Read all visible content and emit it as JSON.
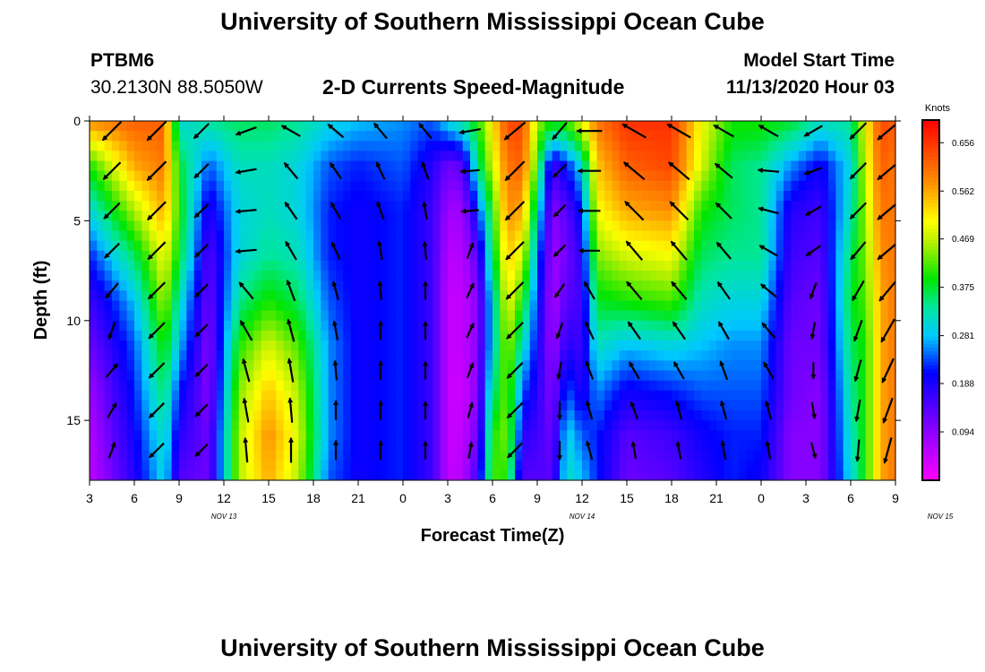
{
  "page": {
    "title_top": "University of Southern Mississippi Ocean Cube",
    "title_bottom": "University of Southern Mississippi Ocean Cube",
    "station_name": "PTBM6",
    "station_coords": "30.2130N 88.5050W",
    "model_start_label": "Model Start Time",
    "model_start_time": "11/13/2020 Hour 03"
  },
  "chart_data": {
    "type": "heatmap",
    "title": "2-D Currents Speed-Magnitude",
    "xlabel": "Forecast Time(Z)",
    "ylabel": "Depth (ft)",
    "x_tick_labels": [
      "3",
      "6",
      "9",
      "12",
      "15",
      "18",
      "21",
      "0",
      "3",
      "6",
      "9",
      "12",
      "15",
      "18",
      "21",
      "0",
      "3",
      "6",
      "9"
    ],
    "x_hours_from_start": [
      0,
      3,
      6,
      9,
      12,
      15,
      18,
      21,
      24,
      27,
      30,
      33,
      36,
      39,
      42,
      45,
      48,
      51,
      54
    ],
    "x_range_hours": [
      0,
      54
    ],
    "date_labels": [
      {
        "text": "NOV 13",
        "hour": 9
      },
      {
        "text": "NOV 14",
        "hour": 33
      },
      {
        "text": "NOV 15",
        "hour": 57
      }
    ],
    "y_ticks": [
      0,
      5,
      10,
      15
    ],
    "y_tick_labels": [
      "0",
      "5",
      "10",
      "15"
    ],
    "y_range": [
      0,
      18
    ],
    "colorbar": {
      "label": "Knots",
      "min": 0.0,
      "max": 0.7,
      "tick_values": [
        0.656,
        0.562,
        0.469,
        0.375,
        0.281,
        0.188,
        0.094
      ],
      "tick_labels": [
        "0.656",
        "0.562",
        "0.469",
        "0.375",
        "0.281",
        "0.188",
        "0.094"
      ]
    },
    "speed_profile_by_hour": [
      {
        "h": 0,
        "s": [
          0.58,
          0.4,
          0.3,
          0.22,
          0.16,
          0.12,
          0.08,
          0.06,
          0.05
        ]
      },
      {
        "h": 3,
        "s": [
          0.62,
          0.56,
          0.46,
          0.36,
          0.28,
          0.24,
          0.22,
          0.2,
          0.18
        ]
      },
      {
        "h": 5,
        "s": [
          0.62,
          0.6,
          0.56,
          0.5,
          0.46,
          0.4,
          0.36,
          0.32,
          0.3
        ]
      },
      {
        "h": 6,
        "s": [
          0.3,
          0.38,
          0.4,
          0.38,
          0.32,
          0.28,
          0.22,
          0.18,
          0.14
        ]
      },
      {
        "h": 8,
        "s": [
          0.34,
          0.24,
          0.18,
          0.14,
          0.12,
          0.1,
          0.1,
          0.12,
          0.12
        ]
      },
      {
        "h": 10,
        "s": [
          0.36,
          0.32,
          0.3,
          0.3,
          0.34,
          0.4,
          0.44,
          0.46,
          0.46
        ]
      },
      {
        "h": 12,
        "s": [
          0.36,
          0.32,
          0.32,
          0.34,
          0.4,
          0.48,
          0.54,
          0.58,
          0.56
        ]
      },
      {
        "h": 14,
        "s": [
          0.34,
          0.3,
          0.3,
          0.32,
          0.36,
          0.42,
          0.46,
          0.48,
          0.46
        ]
      },
      {
        "h": 16,
        "s": [
          0.3,
          0.24,
          0.22,
          0.22,
          0.24,
          0.26,
          0.26,
          0.26,
          0.24
        ]
      },
      {
        "h": 18,
        "s": [
          0.28,
          0.22,
          0.2,
          0.2,
          0.2,
          0.2,
          0.2,
          0.2,
          0.2
        ]
      },
      {
        "h": 21,
        "s": [
          0.26,
          0.24,
          0.22,
          0.22,
          0.22,
          0.22,
          0.22,
          0.22,
          0.22
        ]
      },
      {
        "h": 23,
        "s": [
          0.24,
          0.18,
          0.16,
          0.16,
          0.16,
          0.16,
          0.16,
          0.16,
          0.16
        ]
      },
      {
        "h": 24,
        "s": [
          0.3,
          0.12,
          0.08,
          0.06,
          0.05,
          0.05,
          0.05,
          0.05,
          0.05
        ]
      },
      {
        "h": 25,
        "s": [
          0.34,
          0.14,
          0.08,
          0.06,
          0.05,
          0.05,
          0.04,
          0.05,
          0.06
        ]
      },
      {
        "h": 26,
        "s": [
          0.4,
          0.34,
          0.22,
          0.14,
          0.1,
          0.1,
          0.1,
          0.12,
          0.16
        ]
      },
      {
        "h": 27,
        "s": [
          0.52,
          0.48,
          0.4,
          0.36,
          0.3,
          0.3,
          0.34,
          0.4,
          0.42
        ]
      },
      {
        "h": 28,
        "s": [
          0.64,
          0.6,
          0.58,
          0.54,
          0.5,
          0.46,
          0.44,
          0.44,
          0.4
        ]
      },
      {
        "h": 29,
        "s": [
          0.64,
          0.62,
          0.56,
          0.48,
          0.4,
          0.32,
          0.24,
          0.18,
          0.14
        ]
      },
      {
        "h": 30,
        "s": [
          0.46,
          0.4,
          0.32,
          0.26,
          0.22,
          0.2,
          0.18,
          0.16,
          0.14
        ]
      },
      {
        "h": 31,
        "s": [
          0.4,
          0.16,
          0.1,
          0.08,
          0.07,
          0.08,
          0.1,
          0.12,
          0.14
        ]
      },
      {
        "h": 32,
        "s": [
          0.42,
          0.22,
          0.14,
          0.12,
          0.14,
          0.18,
          0.24,
          0.3,
          0.32
        ]
      },
      {
        "h": 33,
        "s": [
          0.5,
          0.3,
          0.22,
          0.18,
          0.16,
          0.16,
          0.18,
          0.24,
          0.28
        ]
      },
      {
        "h": 34,
        "s": [
          0.6,
          0.54,
          0.5,
          0.44,
          0.38,
          0.32,
          0.26,
          0.22,
          0.22
        ]
      },
      {
        "h": 36,
        "s": [
          0.66,
          0.62,
          0.56,
          0.48,
          0.4,
          0.28,
          0.2,
          0.14,
          0.12
        ]
      },
      {
        "h": 39,
        "s": [
          0.66,
          0.64,
          0.58,
          0.5,
          0.42,
          0.3,
          0.22,
          0.16,
          0.14
        ]
      },
      {
        "h": 41,
        "s": [
          0.5,
          0.48,
          0.4,
          0.36,
          0.32,
          0.28,
          0.24,
          0.2,
          0.18
        ]
      },
      {
        "h": 43,
        "s": [
          0.4,
          0.36,
          0.36,
          0.34,
          0.3,
          0.26,
          0.24,
          0.22,
          0.22
        ]
      },
      {
        "h": 45,
        "s": [
          0.4,
          0.34,
          0.34,
          0.34,
          0.3,
          0.26,
          0.24,
          0.22,
          0.2
        ]
      },
      {
        "h": 47,
        "s": [
          0.38,
          0.26,
          0.18,
          0.16,
          0.14,
          0.12,
          0.12,
          0.1,
          0.1
        ]
      },
      {
        "h": 49,
        "s": [
          0.32,
          0.2,
          0.16,
          0.14,
          0.12,
          0.12,
          0.1,
          0.1,
          0.1
        ]
      },
      {
        "h": 51,
        "s": [
          0.34,
          0.3,
          0.32,
          0.36,
          0.38,
          0.36,
          0.34,
          0.32,
          0.3
        ]
      },
      {
        "h": 52,
        "s": [
          0.5,
          0.48,
          0.46,
          0.44,
          0.42,
          0.4,
          0.4,
          0.4,
          0.4
        ]
      },
      {
        "h": 53,
        "s": [
          0.64,
          0.62,
          0.6,
          0.58,
          0.56,
          0.56,
          0.56,
          0.56,
          0.56
        ]
      },
      {
        "h": 54,
        "s": [
          0.62,
          0.6,
          0.6,
          0.6,
          0.6,
          0.6,
          0.6,
          0.6,
          0.6
        ]
      }
    ],
    "vector_direction_deg": [
      {
        "h": 1.5,
        "d": [
          225,
          225,
          225,
          225,
          220,
          200,
          40,
          30,
          20
        ]
      },
      {
        "h": 4.5,
        "d": [
          225,
          225,
          225,
          225,
          225,
          225,
          225,
          225,
          225
        ]
      },
      {
        "h": 7.5,
        "d": [
          225,
          225,
          225,
          225,
          225,
          225,
          225,
          225,
          225
        ]
      },
      {
        "h": 10.5,
        "d": [
          250,
          260,
          265,
          265,
          320,
          330,
          345,
          350,
          355
        ]
      },
      {
        "h": 13.5,
        "d": [
          300,
          320,
          325,
          330,
          340,
          345,
          350,
          355,
          0
        ]
      },
      {
        "h": 16.5,
        "d": [
          310,
          325,
          330,
          335,
          345,
          350,
          355,
          0,
          0
        ]
      },
      {
        "h": 19.5,
        "d": [
          320,
          335,
          340,
          350,
          355,
          0,
          0,
          0,
          0
        ]
      },
      {
        "h": 22.5,
        "d": [
          320,
          340,
          350,
          355,
          0,
          0,
          0,
          0,
          0
        ]
      },
      {
        "h": 25.5,
        "d": [
          260,
          265,
          265,
          20,
          25,
          25,
          20,
          15,
          10
        ]
      },
      {
        "h": 28.5,
        "d": [
          230,
          225,
          225,
          225,
          225,
          225,
          225,
          225,
          225
        ]
      },
      {
        "h": 31.5,
        "d": [
          220,
          225,
          225,
          225,
          215,
          200,
          190,
          180,
          180
        ]
      },
      {
        "h": 33.5,
        "d": [
          270,
          270,
          270,
          270,
          330,
          335,
          340,
          345,
          345
        ]
      },
      {
        "h": 36.5,
        "d": [
          300,
          310,
          315,
          320,
          320,
          325,
          330,
          340,
          350
        ]
      },
      {
        "h": 39.5,
        "d": [
          300,
          310,
          315,
          320,
          320,
          325,
          330,
          345,
          350
        ]
      },
      {
        "h": 42.5,
        "d": [
          300,
          310,
          315,
          320,
          325,
          330,
          340,
          345,
          350
        ]
      },
      {
        "h": 45.5,
        "d": [
          300,
          275,
          285,
          300,
          310,
          320,
          330,
          345,
          350
        ]
      },
      {
        "h": 48.5,
        "d": [
          240,
          250,
          240,
          235,
          200,
          190,
          180,
          170,
          165
        ]
      },
      {
        "h": 51.5,
        "d": [
          225,
          225,
          225,
          220,
          210,
          200,
          195,
          190,
          185
        ]
      },
      {
        "h": 53.5,
        "d": [
          230,
          230,
          230,
          230,
          220,
          210,
          205,
          200,
          195
        ]
      }
    ]
  }
}
